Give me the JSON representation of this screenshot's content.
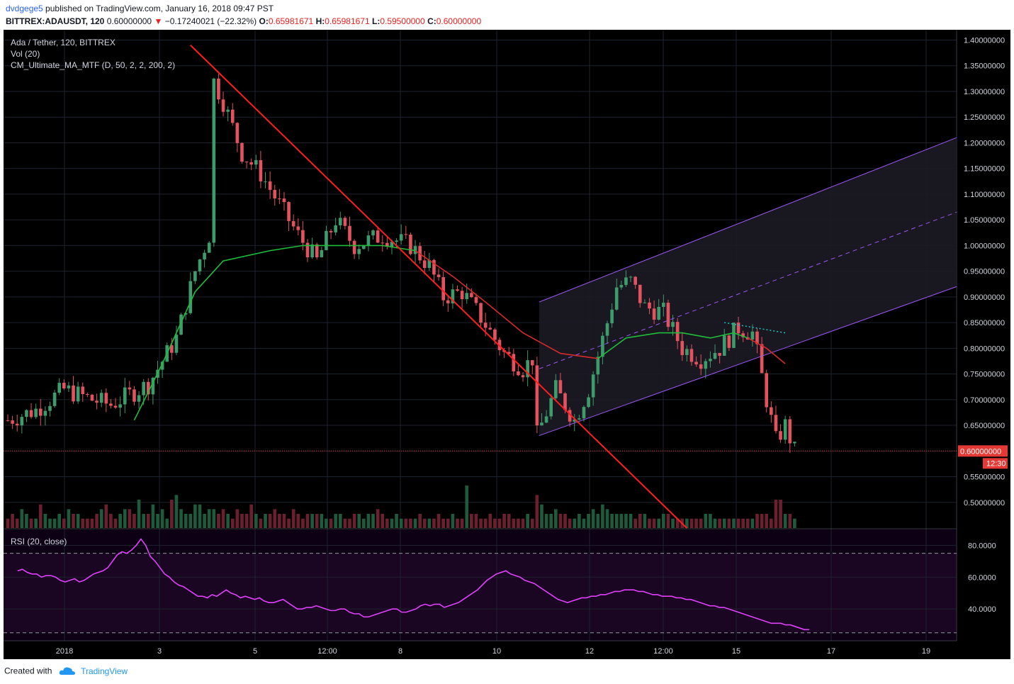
{
  "header": {
    "author": "dvdgege5",
    "published_text": " published on TradingView.com, January 16, 2018 09:47 PST",
    "symbol": "BITTREX:ADAUSDT, 120",
    "last_price": "0.60000000",
    "change": "−0.17240021 (−22.32%)",
    "open_label": "O:",
    "open": "0.65981671",
    "high_label": "H:",
    "high": "0.65981671",
    "low_label": "L:",
    "low": "0.59500000",
    "close_label": "C:",
    "close": "0.60000000"
  },
  "legend": {
    "line1": "Ada / Tether, 120, BITTREX",
    "line2": "Vol (20)",
    "line3": "CM_Ultimate_MA_MTF (D, 50, 2, 2, 200, 2)",
    "rsi": "RSI (20, close)"
  },
  "footer": {
    "created_with": "Created with",
    "brand": "TradingView"
  },
  "colors": {
    "up": "#3e9b6b",
    "down": "#e2525f",
    "trend_line": "#ff1e1e",
    "ma_green": "#1fbf3a",
    "ma_red": "#d82a2a",
    "channel": "#9a58f5",
    "rsi_line": "#e040fb",
    "price_marker": "#e53935",
    "dotted": "#17c6c6"
  },
  "chart_data": [
    {
      "type": "candlestick",
      "title": "Ada / Tether, 120, BITTREX",
      "y_axis": {
        "range": [
          0.45,
          1.42
        ],
        "ticks": [
          0.5,
          0.55,
          0.6,
          0.65,
          0.7,
          0.75,
          0.8,
          0.85,
          0.9,
          0.95,
          1.0,
          1.05,
          1.1,
          1.15,
          1.2,
          1.25,
          1.3,
          1.35,
          1.4
        ],
        "tick_labels": [
          "0.50000000",
          "0.55000000",
          "0.60000000",
          "0.65000000",
          "0.70000000",
          "0.75000000",
          "0.80000000",
          "0.85000000",
          "0.90000000",
          "0.95000000",
          "1.00000000",
          "1.05000000",
          "1.10000000",
          "1.15000000",
          "1.20000000",
          "1.25000000",
          "1.30000000",
          "1.35000000",
          "1.40000000"
        ]
      },
      "x_axis": {
        "ticks": [
          "2018",
          "3",
          "5",
          "12:00",
          "8",
          "10",
          "12",
          "12:00",
          "15",
          "17",
          "19"
        ]
      },
      "last_price_label": "0.60000000",
      "countdown_label": "12:30",
      "price_path": [
        [
          0,
          0.66
        ],
        [
          6,
          0.68
        ],
        [
          12,
          0.72
        ],
        [
          18,
          0.7
        ],
        [
          22,
          0.69
        ],
        [
          26,
          0.71
        ],
        [
          30,
          0.73
        ],
        [
          36,
          0.82
        ],
        [
          40,
          0.95
        ],
        [
          43,
          1.02
        ],
        [
          44,
          1.32
        ],
        [
          46,
          1.28
        ],
        [
          50,
          1.18
        ],
        [
          54,
          1.14
        ],
        [
          58,
          1.08
        ],
        [
          62,
          1.02
        ],
        [
          66,
          0.97
        ],
        [
          70,
          1.05
        ],
        [
          74,
          1.0
        ],
        [
          80,
          1.02
        ],
        [
          86,
          1.0
        ],
        [
          90,
          0.96
        ],
        [
          93,
          0.9
        ],
        [
          97,
          0.91
        ],
        [
          101,
          0.86
        ],
        [
          106,
          0.79
        ],
        [
          110,
          0.76
        ],
        [
          112,
          0.78
        ],
        [
          113,
          0.63
        ],
        [
          117,
          0.72
        ],
        [
          121,
          0.66
        ],
        [
          124,
          0.72
        ],
        [
          128,
          0.85
        ],
        [
          130,
          0.92
        ],
        [
          133,
          0.93
        ],
        [
          136,
          0.88
        ],
        [
          140,
          0.87
        ],
        [
          144,
          0.8
        ],
        [
          148,
          0.78
        ],
        [
          152,
          0.8
        ],
        [
          156,
          0.84
        ],
        [
          159,
          0.83
        ],
        [
          160,
          0.79
        ],
        [
          162,
          0.7
        ],
        [
          164,
          0.62
        ],
        [
          166,
          0.65
        ],
        [
          168,
          0.6
        ]
      ],
      "series": [
        {
          "name": "MA 50 (green)",
          "points": [
            [
              27,
              0.66
            ],
            [
              33,
              0.77
            ],
            [
              40,
              0.91
            ],
            [
              46,
              0.97
            ],
            [
              56,
              0.99
            ],
            [
              63,
              1.0
            ],
            [
              70,
              1.0
            ],
            [
              80,
              1.0
            ],
            [
              87,
              0.99
            ]
          ]
        },
        {
          "name": "MA 200 (red)",
          "points": [
            [
              87,
              0.99
            ],
            [
              95,
              0.94
            ],
            [
              102,
              0.89
            ],
            [
              110,
              0.83
            ],
            [
              118,
              0.79
            ],
            [
              126,
              0.78
            ]
          ]
        },
        {
          "name": "MA 50 (green, later)",
          "points": [
            [
              126,
              0.78
            ],
            [
              132,
              0.82
            ],
            [
              139,
              0.83
            ],
            [
              144,
              0.83
            ],
            [
              150,
              0.82
            ],
            [
              155,
              0.83
            ],
            [
              158,
              0.82
            ]
          ]
        },
        {
          "name": "MA 200 (red, later)",
          "points": [
            [
              158,
              0.82
            ],
            [
              162,
              0.8
            ],
            [
              166,
              0.77
            ]
          ]
        }
      ],
      "annotations": {
        "trend_line": [
          [
            39,
            1.39
          ],
          [
            145,
            0.45
          ]
        ],
        "channel_upper": [
          [
            112,
            0.89
          ],
          [
            200,
            1.21
          ]
        ],
        "channel_mid": [
          [
            112,
            0.76
          ],
          [
            200,
            1.065
          ]
        ],
        "channel_lower": [
          [
            112,
            0.63
          ],
          [
            200,
            0.92
          ]
        ],
        "dotted_line": [
          [
            153,
            0.85
          ],
          [
            166,
            0.83
          ]
        ]
      }
    },
    {
      "type": "bar",
      "title": "Vol (20)",
      "note": "volume histogram (relative units)",
      "values": [
        2,
        3,
        2,
        4,
        3,
        2,
        2,
        5,
        3,
        2,
        2,
        3,
        2,
        4,
        3,
        3,
        2,
        2,
        2,
        3,
        4,
        5,
        3,
        2,
        3,
        4,
        4,
        3,
        6,
        3,
        3,
        5,
        3,
        4,
        2,
        6,
        7,
        4,
        3,
        3,
        5,
        5,
        3,
        4,
        4,
        3,
        4,
        3,
        2,
        4,
        3,
        3,
        5,
        3,
        2,
        3,
        3,
        4,
        3,
        3,
        2,
        4,
        3,
        2,
        3,
        3,
        3,
        3,
        2,
        2,
        3,
        3,
        2,
        2,
        3,
        3,
        2,
        3,
        3,
        4,
        3,
        2,
        2,
        3,
        2,
        2,
        2,
        2,
        3,
        2,
        2,
        2,
        3,
        2,
        2,
        3,
        2,
        2,
        9,
        3,
        3,
        2,
        2,
        3,
        2,
        2,
        3,
        3,
        2,
        2,
        2,
        3,
        2,
        7,
        5,
        3,
        3,
        4,
        3,
        3,
        2,
        2,
        3,
        2,
        3,
        4,
        3,
        5,
        4,
        3,
        3,
        3,
        3,
        3,
        2,
        3,
        3,
        2,
        2,
        2,
        3,
        3,
        2,
        2,
        2,
        2,
        2,
        2,
        2,
        3,
        3,
        2,
        2,
        2,
        2,
        2,
        2,
        2,
        2,
        2,
        3,
        3,
        3,
        2,
        6,
        6,
        3,
        3,
        2
      ]
    },
    {
      "type": "line",
      "title": "RSI (20, close)",
      "y_axis": {
        "range": [
          20,
          90
        ],
        "ticks": [
          40,
          60,
          80
        ],
        "tick_labels": [
          "40.0000",
          "60.0000",
          "80.0000"
        ],
        "bands": [
          25,
          75
        ]
      },
      "values": [
        64,
        65,
        63,
        62,
        62,
        60,
        61,
        61,
        60,
        58,
        57,
        58,
        59,
        57,
        58,
        60,
        62,
        63,
        64,
        66,
        70,
        74,
        76,
        75,
        77,
        80,
        84,
        80,
        73,
        70,
        66,
        62,
        60,
        57,
        55,
        54,
        52,
        50,
        48,
        48,
        47,
        49,
        48,
        50,
        52,
        50,
        49,
        47,
        48,
        47,
        46,
        47,
        45,
        44,
        44,
        45,
        46,
        44,
        42,
        40,
        40,
        41,
        41,
        42,
        41,
        40,
        39,
        39,
        40,
        40,
        38,
        37,
        37,
        35,
        35,
        36,
        37,
        38,
        39,
        40,
        40,
        38,
        38,
        39,
        40,
        42,
        43,
        42,
        43,
        43,
        41,
        42,
        43,
        44,
        46,
        48,
        50,
        52,
        55,
        58,
        60,
        62,
        63,
        64,
        62,
        61,
        60,
        58,
        57,
        56,
        54,
        52,
        50,
        48,
        46,
        45,
        44,
        45,
        46,
        47,
        47,
        48,
        48,
        49,
        49,
        50,
        51,
        51,
        52,
        52,
        52,
        51,
        51,
        50,
        49,
        49,
        48,
        48,
        48,
        47,
        47,
        46,
        46,
        45,
        44,
        43,
        42,
        42,
        41,
        41,
        40,
        39,
        38,
        37,
        36,
        35,
        34,
        33,
        32,
        31,
        31,
        31,
        30,
        30,
        29,
        28,
        27,
        27
      ]
    }
  ]
}
